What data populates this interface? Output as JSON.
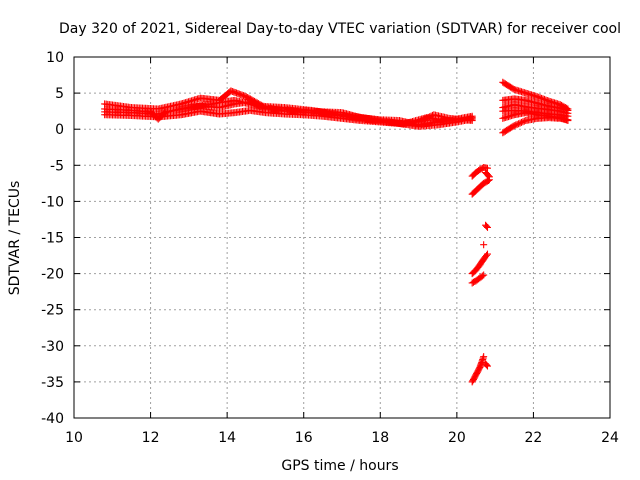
{
  "chart_data": {
    "type": "scatter",
    "title": "Day 320 of 2021, Sidereal Day-to-day VTEC variation (SDTVAR) for receiver cool",
    "xlabel": "GPS time / hours",
    "ylabel": "SDTVAR / TECUs",
    "xlim": [
      10,
      24
    ],
    "ylim": [
      -40,
      10
    ],
    "xticks": [
      10,
      12,
      14,
      16,
      18,
      20,
      22,
      24
    ],
    "yticks": [
      10,
      5,
      0,
      -5,
      -10,
      -15,
      -20,
      -25,
      -30,
      -35,
      -40
    ],
    "grid": true,
    "marker": "+",
    "color": "#ff0000",
    "series": [
      {
        "name": "track-a",
        "x": [
          10.8,
          11.5,
          12.2,
          12.8,
          13.3,
          13.8,
          14.1,
          14.5,
          15.0,
          15.5,
          16.0,
          16.5,
          17.0,
          17.5,
          18.0,
          18.5,
          19.0,
          19.5,
          20.0,
          20.4
        ],
        "y": [
          3.5,
          3.0,
          2.8,
          3.5,
          4.3,
          4.0,
          5.3,
          4.5,
          3.0,
          2.5,
          2.6,
          2.4,
          2.3,
          1.6,
          1.3,
          1.2,
          0.6,
          1.0,
          1.3,
          1.6
        ]
      },
      {
        "name": "track-b",
        "x": [
          10.8,
          11.5,
          12.2,
          12.8,
          13.3,
          13.8,
          14.2,
          14.6,
          15.0,
          15.5,
          16.0,
          16.5,
          17.0,
          17.5,
          18.0,
          18.5,
          19.0,
          19.4,
          19.8,
          20.4
        ],
        "y": [
          2.4,
          2.3,
          2.1,
          2.8,
          3.2,
          3.0,
          3.5,
          3.8,
          2.8,
          2.8,
          2.3,
          2.2,
          1.8,
          1.4,
          1.1,
          0.8,
          1.0,
          2.0,
          1.5,
          1.2
        ]
      },
      {
        "name": "track-c",
        "x": [
          10.8,
          11.5,
          12.2,
          12.8,
          13.3,
          13.8,
          14.2,
          14.6,
          15.0,
          15.5,
          16.0,
          16.5,
          17.0,
          17.5,
          18.0,
          18.5,
          19.0,
          19.5,
          20.0,
          20.4
        ],
        "y": [
          2.0,
          1.9,
          1.7,
          2.0,
          2.5,
          2.1,
          2.3,
          2.6,
          2.3,
          2.1,
          2.0,
          1.8,
          1.5,
          1.2,
          1.0,
          0.8,
          0.4,
          0.6,
          1.0,
          1.4
        ]
      },
      {
        "name": "track-d",
        "x": [
          10.8,
          11.5,
          12.0,
          12.2,
          12.4,
          13.0,
          13.6,
          14.2,
          14.8,
          15.5,
          16.2,
          17.0,
          17.8,
          18.6,
          19.2,
          19.8,
          20.4
        ],
        "y": [
          2.8,
          2.6,
          2.4,
          1.4,
          2.4,
          3.0,
          3.5,
          4.0,
          3.2,
          3.0,
          2.6,
          2.0,
          1.4,
          0.7,
          1.6,
          1.2,
          1.8
        ]
      },
      {
        "name": "late-a",
        "x": [
          21.2,
          21.5,
          21.8,
          22.1,
          22.4,
          22.7,
          22.9
        ],
        "y": [
          6.5,
          5.5,
          5.0,
          4.5,
          3.9,
          3.4,
          2.8
        ]
      },
      {
        "name": "late-b",
        "x": [
          21.2,
          21.5,
          21.8,
          22.1,
          22.4,
          22.7,
          22.9
        ],
        "y": [
          4.0,
          4.2,
          4.0,
          3.6,
          3.2,
          2.9,
          2.6
        ]
      },
      {
        "name": "late-c",
        "x": [
          21.2,
          21.5,
          21.8,
          22.1,
          22.4,
          22.7,
          22.9
        ],
        "y": [
          2.5,
          2.6,
          2.5,
          2.3,
          2.1,
          2.0,
          1.8
        ]
      },
      {
        "name": "late-d",
        "x": [
          21.2,
          21.5,
          21.8,
          22.1,
          22.4,
          22.7,
          22.9
        ],
        "y": [
          -0.5,
          0.5,
          1.2,
          1.5,
          1.6,
          1.5,
          1.3
        ]
      },
      {
        "name": "late-e",
        "x": [
          21.2,
          21.5,
          21.8,
          22.1,
          22.4,
          22.7,
          22.9
        ],
        "y": [
          1.5,
          2.0,
          2.3,
          2.0,
          1.8,
          1.6,
          1.2
        ]
      },
      {
        "name": "late-f",
        "x": [
          21.2,
          21.5,
          21.8,
          22.1,
          22.4,
          22.7,
          22.9
        ],
        "y": [
          3.0,
          3.4,
          3.1,
          2.9,
          2.7,
          2.5,
          2.2
        ]
      },
      {
        "name": "drop-a",
        "x": [
          20.4,
          20.5,
          20.6,
          20.7,
          20.8
        ],
        "y": [
          -6.5,
          -6.0,
          -5.6,
          -5.3,
          -5.4
        ]
      },
      {
        "name": "drop-b",
        "x": [
          20.4,
          20.5,
          20.6,
          20.7,
          20.8,
          20.85
        ],
        "y": [
          -9.0,
          -8.5,
          -8.0,
          -7.5,
          -7.2,
          -7.0
        ]
      },
      {
        "name": "drop-c",
        "x": [
          20.75,
          20.8,
          20.85
        ],
        "y": [
          -6.0,
          -6.3,
          -6.6
        ]
      },
      {
        "name": "drop-d",
        "x": [
          20.75,
          20.8
        ],
        "y": [
          -13.3,
          -13.6
        ]
      },
      {
        "name": "drop-e",
        "x": [
          20.7
        ],
        "y": [
          -16.0
        ]
      },
      {
        "name": "drop-f",
        "x": [
          20.4,
          20.5,
          20.6,
          20.7,
          20.8
        ],
        "y": [
          -20.0,
          -19.5,
          -18.8,
          -18.0,
          -17.3
        ]
      },
      {
        "name": "drop-g",
        "x": [
          20.4,
          20.5,
          20.6,
          20.7
        ],
        "y": [
          -21.3,
          -21.0,
          -20.6,
          -20.2
        ]
      },
      {
        "name": "drop-h",
        "x": [
          20.4,
          20.5,
          20.55,
          20.6,
          20.65,
          20.7
        ],
        "y": [
          -35.0,
          -34.0,
          -33.5,
          -33.0,
          -32.3,
          -31.5
        ]
      },
      {
        "name": "drop-i",
        "x": [
          20.75,
          20.8
        ],
        "y": [
          -32.5,
          -32.8
        ]
      }
    ]
  }
}
